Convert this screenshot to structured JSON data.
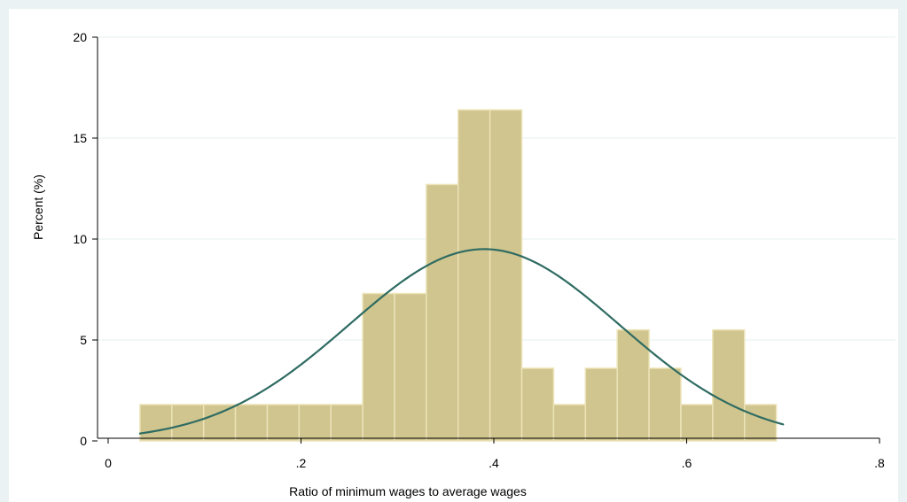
{
  "chart_data": {
    "type": "bar",
    "subtype": "histogram-with-normal-density",
    "title": "",
    "xlabel": "Ratio of minimum wages to average wages",
    "ylabel": "Percent (%)",
    "xlim": [
      0,
      0.8
    ],
    "ylim": [
      0,
      20
    ],
    "x_ticks": [
      0,
      0.2,
      0.4,
      0.6,
      0.8
    ],
    "x_tick_labels": [
      "0",
      ".2",
      ".4",
      ".6",
      ".8"
    ],
    "y_ticks": [
      0,
      5,
      10,
      15,
      20
    ],
    "y_tick_labels": [
      "0",
      "5",
      "10",
      "15",
      "20"
    ],
    "grid": "horizontal",
    "bins": [
      {
        "x0": 0.033,
        "x1": 0.066,
        "value": 1.8
      },
      {
        "x0": 0.066,
        "x1": 0.099,
        "value": 1.8
      },
      {
        "x0": 0.099,
        "x1": 0.132,
        "value": 1.8
      },
      {
        "x0": 0.132,
        "x1": 0.165,
        "value": 1.8
      },
      {
        "x0": 0.165,
        "x1": 0.198,
        "value": 1.8
      },
      {
        "x0": 0.198,
        "x1": 0.231,
        "value": 1.8
      },
      {
        "x0": 0.231,
        "x1": 0.264,
        "value": 1.8
      },
      {
        "x0": 0.264,
        "x1": 0.297,
        "value": 7.3
      },
      {
        "x0": 0.297,
        "x1": 0.33,
        "value": 7.3
      },
      {
        "x0": 0.33,
        "x1": 0.363,
        "value": 12.7
      },
      {
        "x0": 0.363,
        "x1": 0.396,
        "value": 16.4
      },
      {
        "x0": 0.396,
        "x1": 0.429,
        "value": 16.4
      },
      {
        "x0": 0.429,
        "x1": 0.462,
        "value": 3.6
      },
      {
        "x0": 0.462,
        "x1": 0.495,
        "value": 1.8
      },
      {
        "x0": 0.495,
        "x1": 0.528,
        "value": 3.6
      },
      {
        "x0": 0.528,
        "x1": 0.561,
        "value": 5.5
      },
      {
        "x0": 0.561,
        "x1": 0.594,
        "value": 3.6
      },
      {
        "x0": 0.594,
        "x1": 0.627,
        "value": 1.8
      },
      {
        "x0": 0.627,
        "x1": 0.66,
        "value": 5.5
      },
      {
        "x0": 0.66,
        "x1": 0.693,
        "value": 1.8
      }
    ],
    "density_curve": {
      "kind": "normal",
      "mean": 0.39,
      "sd": 0.14,
      "peak": 9.5,
      "x_range": [
        0.033,
        0.7
      ]
    },
    "colors": {
      "outer_background": "#eaf2f3",
      "plot_background": "#ffffff",
      "bar_fill": "#d0c58e",
      "bar_edge": "#ece3b8",
      "curve": "#2e6b62",
      "grid": "#eaf2f3",
      "axis": "#000000"
    }
  }
}
